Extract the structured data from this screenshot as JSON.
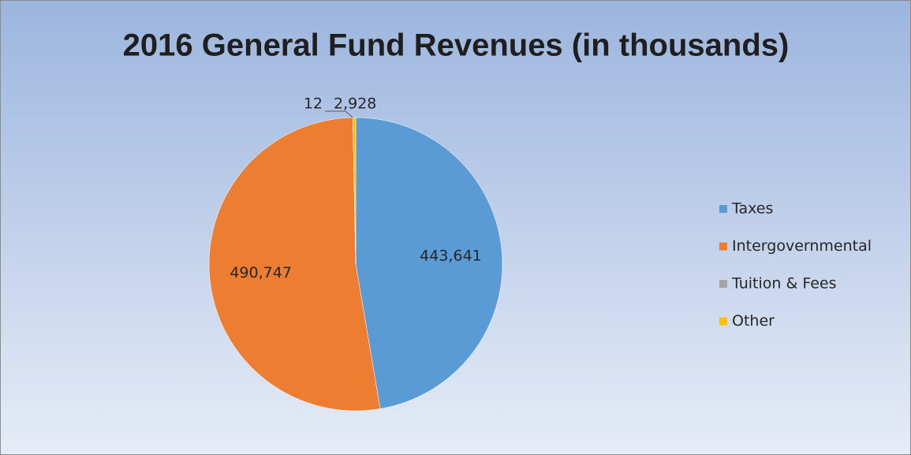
{
  "chart_data": {
    "type": "pie",
    "title": "2016 General Fund Revenues (in thousands)",
    "categories": [
      "Taxes",
      "Intergovernmental",
      "Tuition & Fees",
      "Other"
    ],
    "values": [
      443641,
      490747,
      12,
      2928
    ],
    "value_labels": [
      "443,641",
      "490,747",
      "12",
      "2,928"
    ],
    "colors": [
      "#5b9bd5",
      "#ed7d31",
      "#a5a5a5",
      "#ffc000"
    ],
    "legend": "right"
  }
}
